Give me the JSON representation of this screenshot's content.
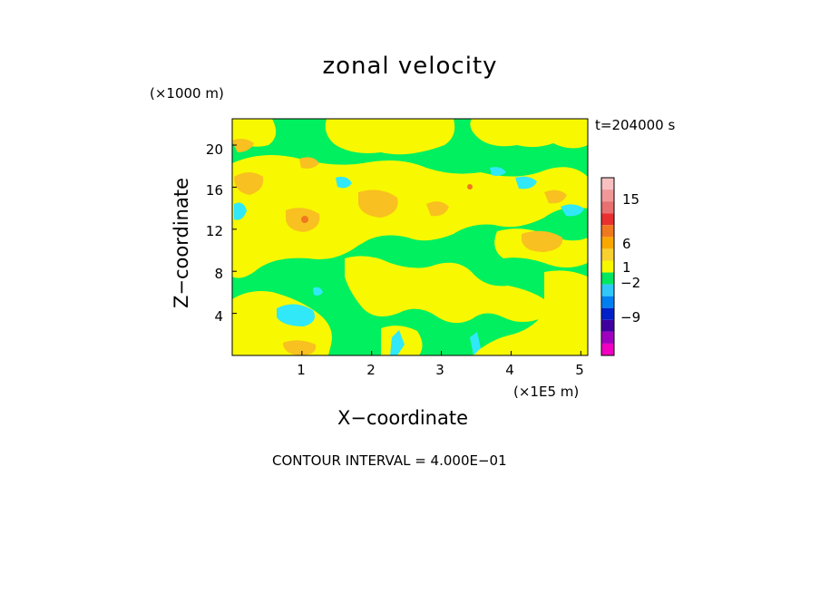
{
  "chart_data": {
    "type": "contour",
    "title": "zonal velocity",
    "xlabel": "X−coordinate",
    "ylabel": "Z−coordinate",
    "x_unit": "(×1E5 m)",
    "y_unit": "(×1000 m)",
    "time_label": "t=204000 s",
    "footer": "CONTOUR INTERVAL = 4.000E−01",
    "xlim": [
      0,
      5.1
    ],
    "ylim": [
      0,
      22.5
    ],
    "x_ticks": [
      "1",
      "2",
      "3",
      "4",
      "5"
    ],
    "y_ticks": [
      "4",
      "8",
      "12",
      "16",
      "20"
    ],
    "colorbar": {
      "tick_labels": [
        "15",
        "6",
        "1",
        "−2",
        "−9"
      ],
      "levels": [
        {
          "label": "",
          "color": "#f8c0c0"
        },
        {
          "label": "15",
          "color": "#f09898"
        },
        {
          "label": "",
          "color": "#e87070"
        },
        {
          "label": "",
          "color": "#e83030"
        },
        {
          "label": "6",
          "color": "#f07820"
        },
        {
          "label": "",
          "color": "#f8a800"
        },
        {
          "label": "1",
          "color": "#f8d030"
        },
        {
          "label": "",
          "color": "#f8f800"
        },
        {
          "label": "",
          "color": "#00e860"
        },
        {
          "label": "−2",
          "color": "#30c8f8"
        },
        {
          "label": "",
          "color": "#0080f0"
        },
        {
          "label": "",
          "color": "#0020c8"
        },
        {
          "label": "",
          "color": "#4000a0"
        },
        {
          "label": "−9",
          "color": "#a000c0"
        },
        {
          "label": "",
          "color": "#f000c0"
        }
      ]
    },
    "field_colors": {
      "background": "#00f060",
      "weak_positive": "#f8f800",
      "moderate_positive": "#f8c020",
      "strong_positive": "#f07820",
      "weak_negative": "#30e8f8"
    }
  }
}
